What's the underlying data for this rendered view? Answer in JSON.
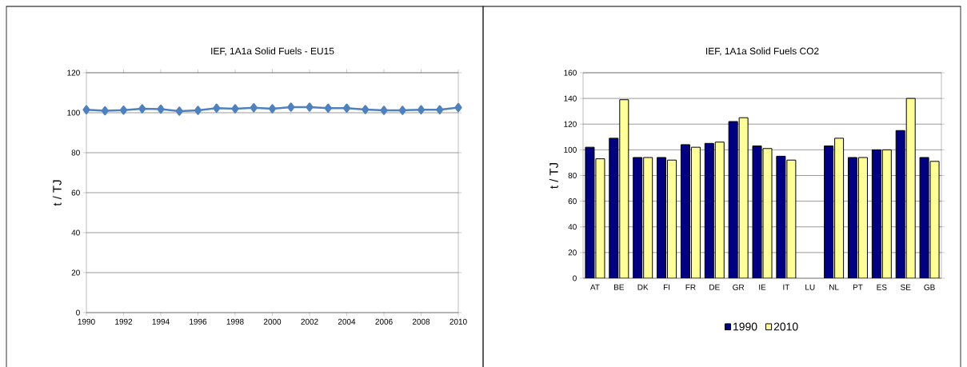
{
  "chart_data": [
    {
      "type": "line",
      "title": "IEF, 1A1a Solid Fuels -  EU15",
      "ylabel": "t / TJ",
      "x": [
        1990,
        1991,
        1992,
        1993,
        1994,
        1995,
        1996,
        1997,
        1998,
        1999,
        2000,
        2001,
        2002,
        2003,
        2004,
        2005,
        2006,
        2007,
        2008,
        2009,
        2010
      ],
      "series": [
        {
          "color": "#4f81bd",
          "values": [
            101.5,
            101,
            101.3,
            102,
            101.8,
            100.8,
            101.2,
            102.3,
            102,
            102.5,
            102,
            102.8,
            102.8,
            102.3,
            102.3,
            101.6,
            101.2,
            101.2,
            101.5,
            101.5,
            102.6
          ]
        }
      ],
      "xlim": [
        1990,
        2010
      ],
      "xticks": [
        1990,
        1992,
        1994,
        1996,
        1998,
        2000,
        2002,
        2004,
        2006,
        2008,
        2010
      ],
      "ylim": [
        0,
        120
      ],
      "yticks": [
        0,
        20,
        40,
        60,
        80,
        100,
        120
      ],
      "grid": "y",
      "marker": "diamond",
      "line_style": "solid"
    },
    {
      "type": "bar",
      "title": "IEF, 1A1a Solid Fuels CO2",
      "ylabel": "t / TJ",
      "categories": [
        "AT",
        "BE",
        "DK",
        "FI",
        "FR",
        "DE",
        "GR",
        "IE",
        "IT",
        "LU",
        "NL",
        "PT",
        "ES",
        "SE",
        "GB"
      ],
      "series": [
        {
          "name": "1990",
          "color": "#000080",
          "values": [
            102,
            109,
            94,
            94,
            104,
            105,
            122,
            103,
            95,
            null,
            103,
            94,
            100,
            115,
            94
          ]
        },
        {
          "name": "2010",
          "color": "#ffff99",
          "values": [
            93,
            139,
            94,
            92,
            102,
            106,
            125,
            101,
            92,
            null,
            109,
            94,
            100,
            140,
            91
          ]
        }
      ],
      "ylim": [
        0,
        160
      ],
      "yticks": [
        0,
        20,
        40,
        60,
        80,
        100,
        120,
        140,
        160
      ],
      "grid": "y",
      "legend": "bottom"
    }
  ]
}
